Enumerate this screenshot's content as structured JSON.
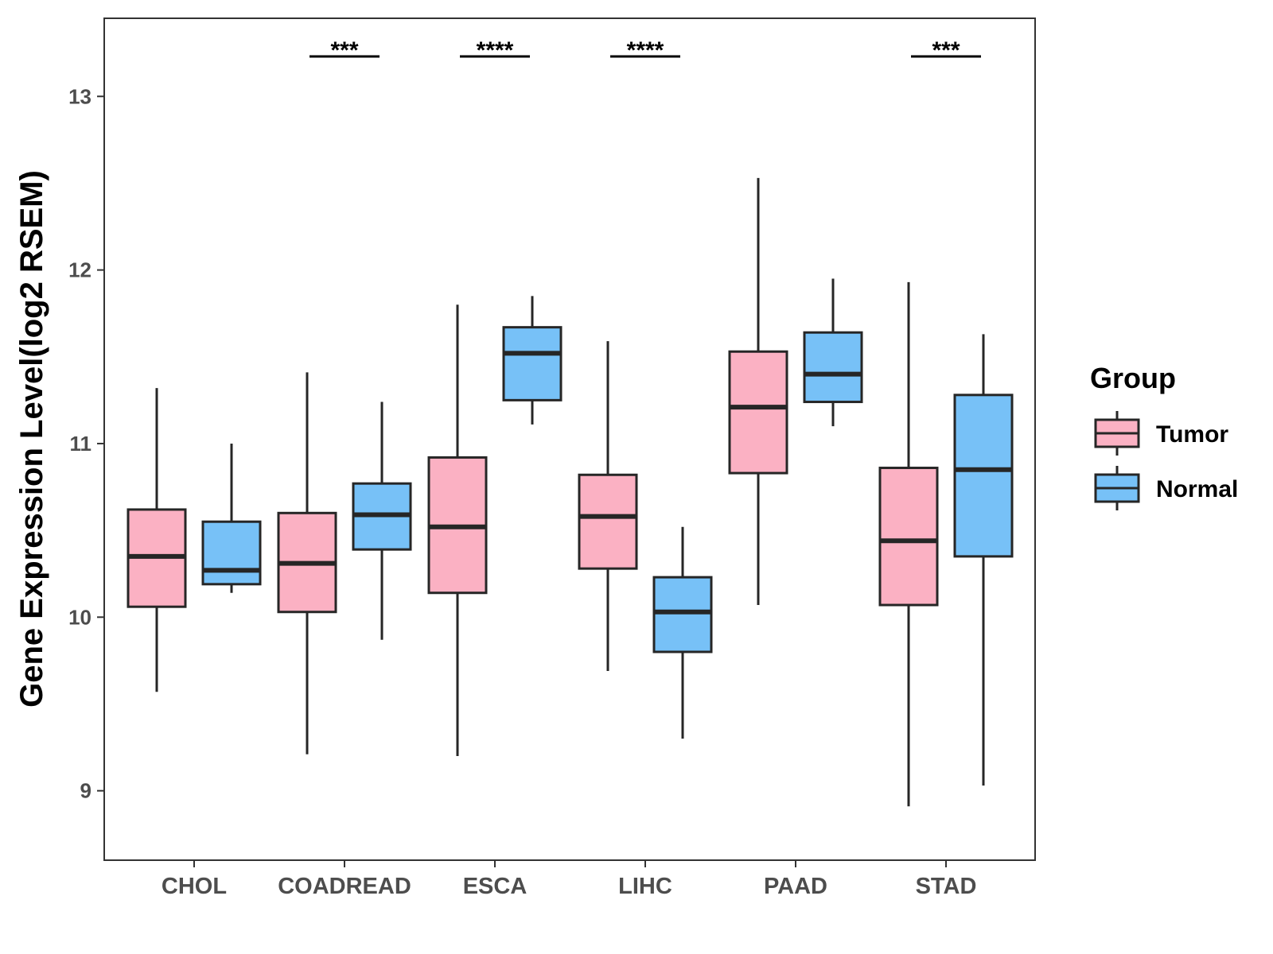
{
  "chart_data": {
    "type": "boxplot",
    "ylabel": "Gene Expression Level(log2 RSEM)",
    "xlabel": "",
    "ylim": [
      8.6,
      13.45
    ],
    "yticks": [
      9,
      10,
      11,
      12,
      13
    ],
    "ytick_labels": [
      "9",
      "10",
      "11",
      "12",
      "13"
    ],
    "categories": [
      "CHOL",
      "COADREAD",
      "ESCA",
      "LIHC",
      "PAAD",
      "STAD"
    ],
    "grid": false,
    "legend": {
      "title": "Group",
      "position": "right",
      "entries": [
        {
          "name": "Tumor",
          "color": "#FBB1C3"
        },
        {
          "name": "Normal",
          "color": "#77C1F7"
        }
      ]
    },
    "series": [
      {
        "name": "Tumor",
        "color": "#FBB1C3",
        "boxes": [
          {
            "whisker_low": 9.57,
            "q1": 10.06,
            "median": 10.35,
            "q3": 10.62,
            "whisker_high": 11.32
          },
          {
            "whisker_low": 9.21,
            "q1": 10.03,
            "median": 10.31,
            "q3": 10.6,
            "whisker_high": 11.41
          },
          {
            "whisker_low": 9.2,
            "q1": 10.14,
            "median": 10.52,
            "q3": 10.92,
            "whisker_high": 11.8
          },
          {
            "whisker_low": 9.69,
            "q1": 10.28,
            "median": 10.58,
            "q3": 10.82,
            "whisker_high": 11.59
          },
          {
            "whisker_low": 10.07,
            "q1": 10.83,
            "median": 11.21,
            "q3": 11.53,
            "whisker_high": 12.53
          },
          {
            "whisker_low": 8.91,
            "q1": 10.07,
            "median": 10.44,
            "q3": 10.86,
            "whisker_high": 11.93
          }
        ]
      },
      {
        "name": "Normal",
        "color": "#77C1F7",
        "boxes": [
          {
            "whisker_low": 10.14,
            "q1": 10.19,
            "median": 10.27,
            "q3": 10.55,
            "whisker_high": 11.0
          },
          {
            "whisker_low": 9.87,
            "q1": 10.39,
            "median": 10.59,
            "q3": 10.77,
            "whisker_high": 11.24
          },
          {
            "whisker_low": 11.11,
            "q1": 11.25,
            "median": 11.52,
            "q3": 11.67,
            "whisker_high": 11.85
          },
          {
            "whisker_low": 9.3,
            "q1": 9.8,
            "median": 10.03,
            "q3": 10.23,
            "whisker_high": 10.52
          },
          {
            "whisker_low": 11.1,
            "q1": 11.24,
            "median": 11.4,
            "q3": 11.64,
            "whisker_high": 11.95
          },
          {
            "whisker_low": 9.03,
            "q1": 10.35,
            "median": 10.85,
            "q3": 11.28,
            "whisker_high": 11.63
          }
        ]
      }
    ],
    "significance": [
      {
        "category": "CHOL",
        "label": ""
      },
      {
        "category": "COADREAD",
        "label": "***"
      },
      {
        "category": "ESCA",
        "label": "****"
      },
      {
        "category": "LIHC",
        "label": "****"
      },
      {
        "category": "PAAD",
        "label": ""
      },
      {
        "category": "STAD",
        "label": "***"
      }
    ],
    "significance_level": 13.23
  }
}
